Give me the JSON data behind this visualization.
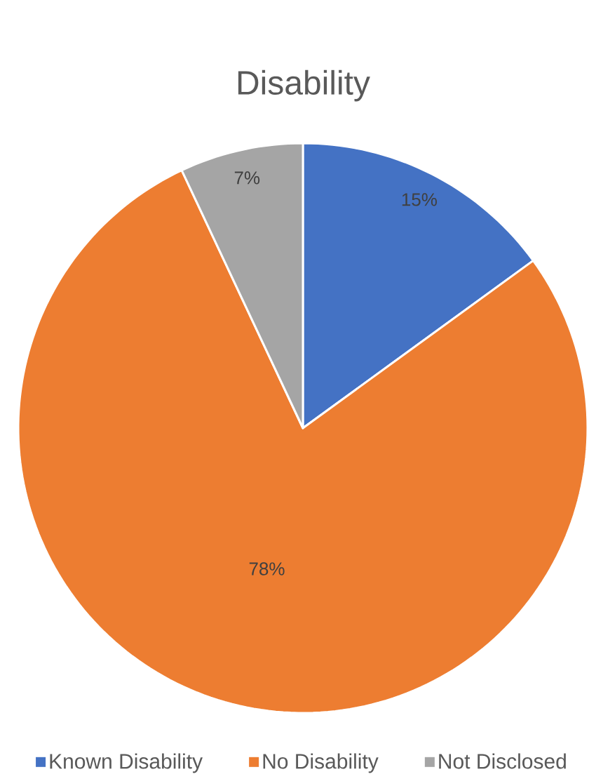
{
  "chart_data": {
    "type": "pie",
    "title": "Disability",
    "categories": [
      "Known Disability",
      "No Disability",
      "Not Disclosed"
    ],
    "values": [
      15,
      78,
      7
    ],
    "colors": [
      "#4472c4",
      "#ed7d31",
      "#a5a5a5"
    ],
    "value_labels": [
      "15%",
      "78%",
      "7%"
    ],
    "legend": "bottom"
  }
}
